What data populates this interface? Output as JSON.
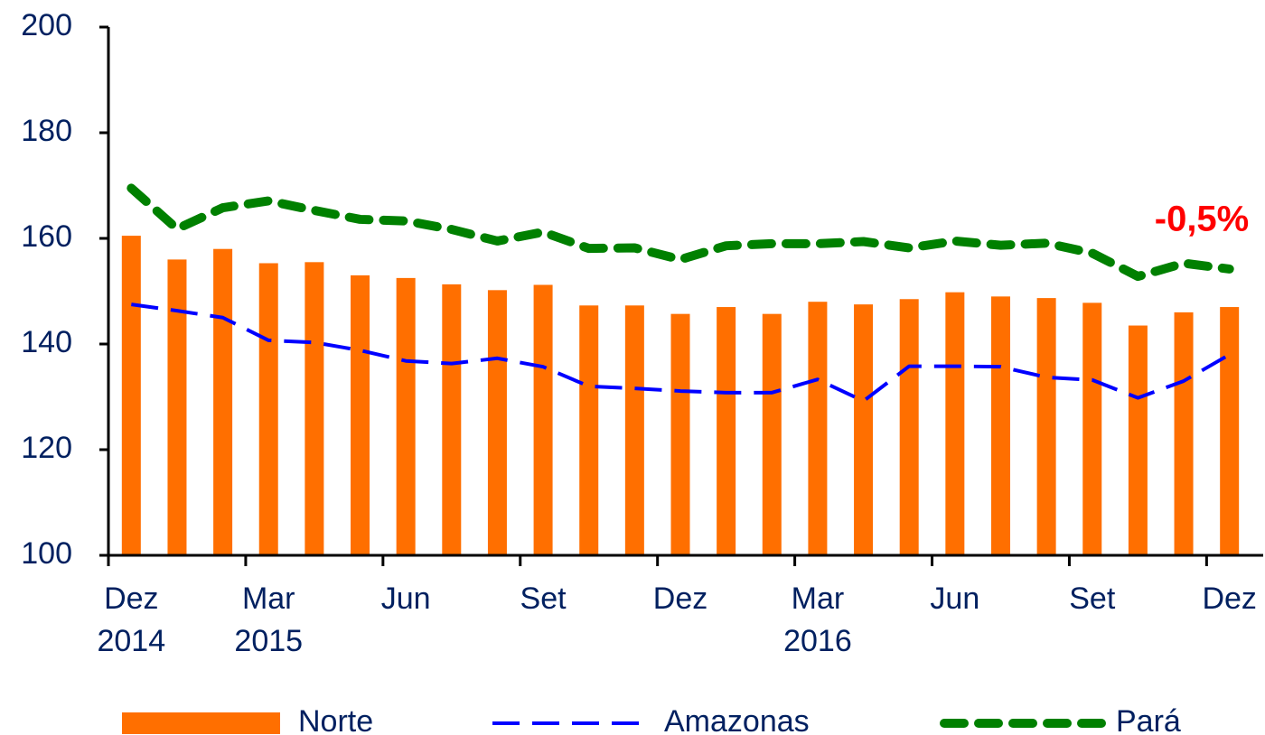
{
  "chart_data": {
    "type": "bar_line",
    "categories": [
      "Dez 2014",
      null,
      null,
      "Mar 2015",
      null,
      null,
      "Jun",
      null,
      null,
      "Set",
      null,
      null,
      "Dez",
      null,
      null,
      "Mar 2016",
      null,
      null,
      "Jun",
      null,
      null,
      "Set",
      null,
      null,
      "Dez"
    ],
    "series": [
      {
        "name": "Norte",
        "type": "bar",
        "color": "#ff6f00",
        "values": [
          160.5,
          156,
          158,
          155.3,
          155.5,
          153,
          152.5,
          151.3,
          150.2,
          151.2,
          147.3,
          147.3,
          145.7,
          147,
          145.7,
          148,
          147.5,
          148.5,
          149.8,
          149,
          148.7,
          147.8,
          143.5,
          146,
          147
        ]
      },
      {
        "name": "Amazonas",
        "type": "line",
        "color": "#0000ff",
        "values": [
          147.5,
          146.3,
          145,
          140.7,
          140.3,
          138.8,
          136.8,
          136.3,
          137.3,
          135.7,
          132,
          131.6,
          131.1,
          130.8,
          130.8,
          133.3,
          129.2,
          135.8,
          135.8,
          135.7,
          133.7,
          133.2,
          129.8,
          133,
          138
        ]
      },
      {
        "name": "Pará",
        "type": "line",
        "color": "#008000",
        "values": [
          169.5,
          161.8,
          165.8,
          167.1,
          165.3,
          163.6,
          163.3,
          161.7,
          159.5,
          161.2,
          158.1,
          158.2,
          156,
          158.6,
          159,
          159,
          159.4,
          158.2,
          159.5,
          158.7,
          159.1,
          157.2,
          152.8,
          155.3,
          154.2
        ]
      }
    ],
    "annotation": "-0,5%",
    "ylim": [
      100,
      200
    ],
    "yticks": [
      100,
      120,
      140,
      160,
      180,
      200
    ]
  }
}
